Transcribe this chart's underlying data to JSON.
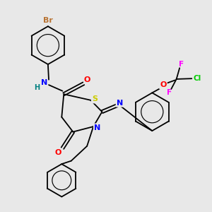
{
  "bg_color": "#e8e8e8",
  "bond_color": "#000000",
  "atom_colors": {
    "Br": "#b87333",
    "N": "#0000ff",
    "H": "#008080",
    "O": "#ff0000",
    "S": "#cccc00",
    "F": "#ff00ff",
    "Cl": "#00cc00"
  },
  "line_width": 1.3,
  "font_size": 7.5
}
